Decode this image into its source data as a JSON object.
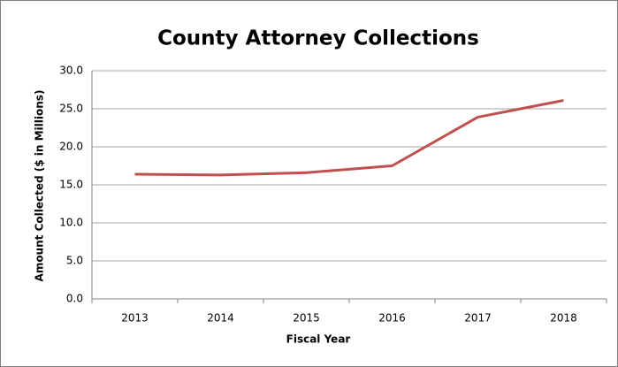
{
  "chart_data": {
    "type": "line",
    "title": "County Attorney Collections",
    "x_label": "Fiscal Year",
    "y_label": "Amount Collected ($ in Millions)",
    "categories": [
      "2013",
      "2014",
      "2015",
      "2016",
      "2017",
      "2018"
    ],
    "series": [
      {
        "name": "Collections",
        "color": "#c0504d",
        "values": [
          16.4,
          16.3,
          16.6,
          17.5,
          23.9,
          26.1
        ]
      }
    ],
    "ylim": [
      0,
      30
    ],
    "yticks": [
      {
        "value": 0,
        "label": "0.0"
      },
      {
        "value": 5,
        "label": "5.0"
      },
      {
        "value": 10,
        "label": "10.0"
      },
      {
        "value": 15,
        "label": "15.0"
      },
      {
        "value": 20,
        "label": "20.0"
      },
      {
        "value": 25,
        "label": "25.0"
      },
      {
        "value": 30,
        "label": "30.0"
      }
    ],
    "grid": true
  }
}
